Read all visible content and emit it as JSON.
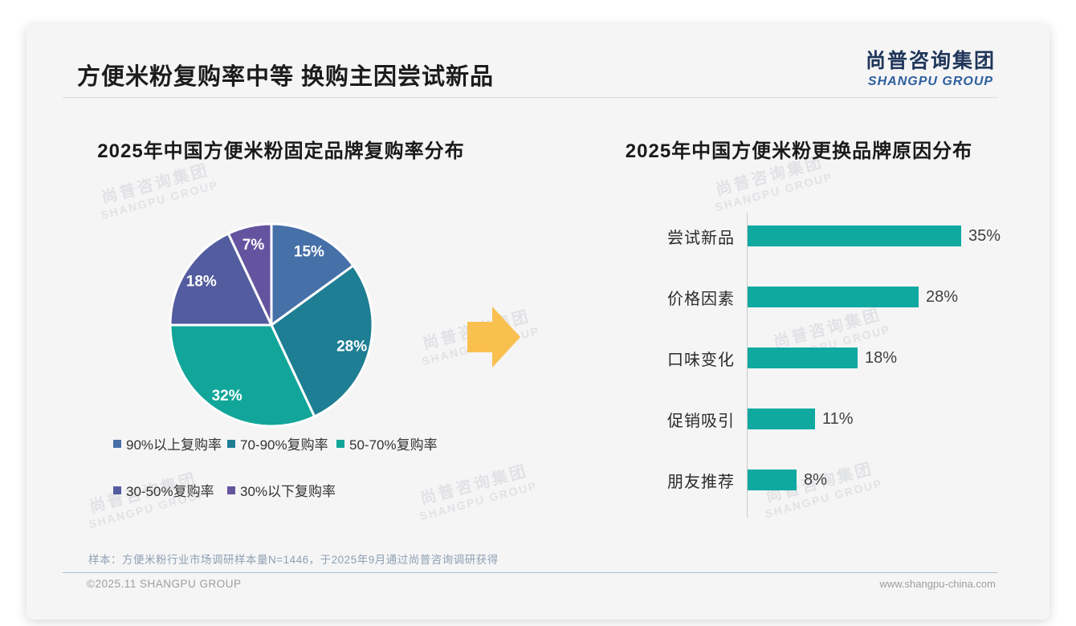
{
  "brand": {
    "cn": "尚普咨询集团",
    "en": "SHANGPU GROUP"
  },
  "header": {
    "title": "方便米粉复购率中等 换购主因尝试新品"
  },
  "chart_data": [
    {
      "type": "pie",
      "title": "2025年中国方便米粉固定品牌复购率分布",
      "labels": [
        "90%以上复购率",
        "70-90%复购率",
        "50-70%复购率",
        "30-50%复购率",
        "30%以下复购率"
      ],
      "values": [
        15,
        28,
        32,
        18,
        7
      ],
      "data_labels": [
        "15%",
        "28%",
        "32%",
        "18%",
        "7%"
      ],
      "colors": [
        "#4670a8",
        "#1e7e93",
        "#12a69a",
        "#535c9e",
        "#64549f"
      ],
      "start_angle_deg": 0,
      "direction": "clockwise",
      "legend_position": "bottom"
    },
    {
      "type": "bar",
      "title": "2025年中国方便米粉更换品牌原因分布",
      "orientation": "horizontal",
      "categories": [
        "尝试新品",
        "价格因素",
        "口味变化",
        "促销吸引",
        "朋友推荐"
      ],
      "values": [
        35,
        28,
        18,
        11,
        8
      ],
      "value_suffix": "%",
      "bar_color": "#0fa9a0",
      "xlim": [
        0,
        40
      ],
      "grid": false,
      "legend_position": "none"
    }
  ],
  "arrow_color": "#f9c050",
  "footnote": "样本：方便米粉行业市场调研样本量N=1446，于2025年9月通过尚普咨询调研获得",
  "footer": {
    "left": "©2025.11 SHANGPU GROUP",
    "right": "www.shangpu-china.com"
  }
}
